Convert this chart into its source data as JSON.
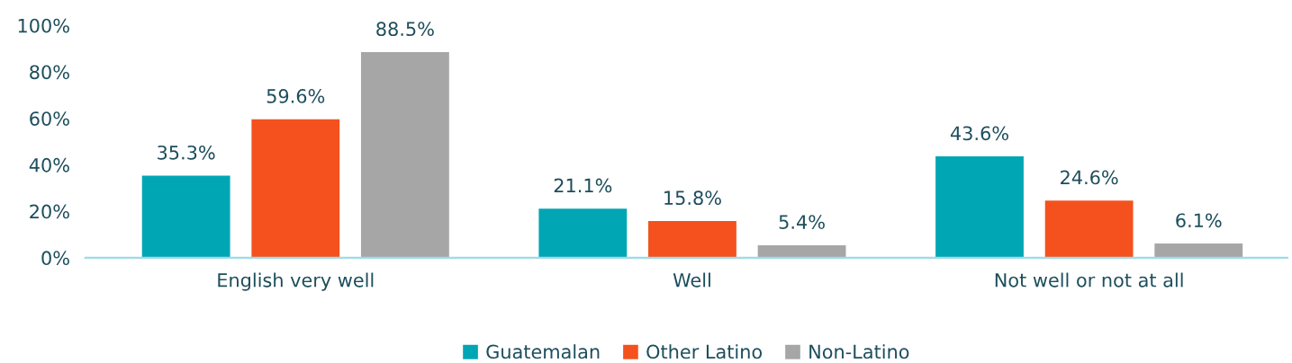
{
  "chart_data": {
    "type": "bar",
    "categories": [
      "English very well",
      "Well",
      "Not well or not at all"
    ],
    "series": [
      {
        "name": "Guatemalan",
        "color": "#00a6b4",
        "values": [
          35.3,
          21.1,
          43.6
        ],
        "value_labels": [
          "35.3%",
          "21.1%",
          "43.6%"
        ]
      },
      {
        "name": "Other Latino",
        "color": "#f4511e",
        "values": [
          59.6,
          15.8,
          24.6
        ],
        "value_labels": [
          "59.6%",
          "15.8%",
          "24.6%"
        ]
      },
      {
        "name": "Non-Latino",
        "color": "#a6a6a6",
        "values": [
          88.5,
          5.4,
          6.1
        ],
        "value_labels": [
          "88.5%",
          "5.4%",
          "6.1%"
        ]
      }
    ],
    "ylim": [
      0,
      100
    ],
    "yticks": [
      {
        "value": 0,
        "label": "0%"
      },
      {
        "value": 20,
        "label": "20%"
      },
      {
        "value": 40,
        "label": "40%"
      },
      {
        "value": 60,
        "label": "60%"
      },
      {
        "value": 80,
        "label": "80%"
      },
      {
        "value": 100,
        "label": "100%"
      }
    ],
    "grid": false,
    "legend": "bottom"
  }
}
